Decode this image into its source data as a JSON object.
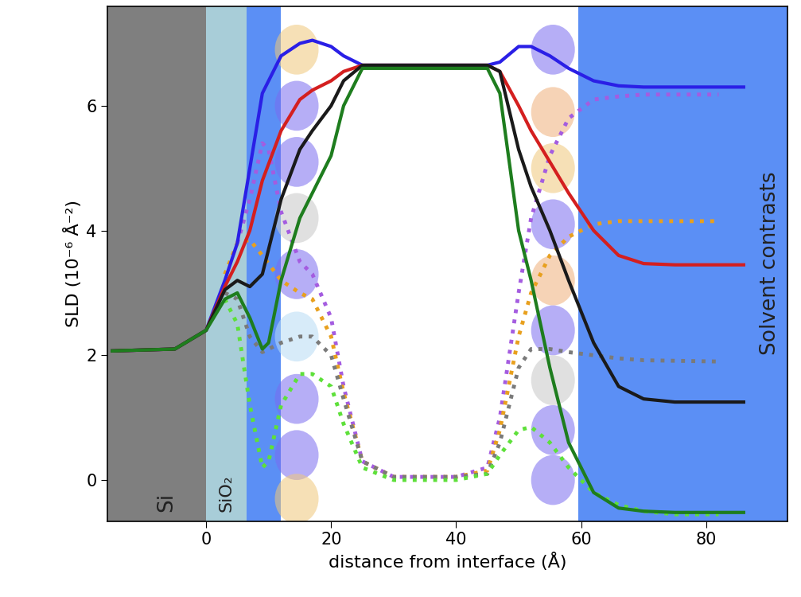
{
  "chart_data": {
    "type": "line",
    "xlabel": "distance from interface (Å)",
    "ylabel": "SLD (10⁻⁶ Å⁻²)",
    "xlim": [
      -15.8,
      93
    ],
    "ylim": [
      -0.66,
      7.6
    ],
    "xticks": [
      0,
      20,
      40,
      60,
      80
    ],
    "yticks": [
      0,
      2,
      4,
      6
    ],
    "grid": false,
    "regions": [
      {
        "label": "Si",
        "start": -15.8,
        "end": 0,
        "color": "#7f7f7f"
      },
      {
        "label": "SiO₂",
        "start": 0,
        "end": 6.5,
        "color": "#a8cdd8"
      },
      {
        "label": null,
        "start": 6.5,
        "end": 12,
        "color": "#5b8ff5"
      },
      {
        "label": "Solvent contrasts",
        "start": 59.5,
        "end": 93,
        "color": "#5b8ff5"
      }
    ],
    "series": [
      {
        "color": "#2a1fe6",
        "line_style": "solid",
        "x": [
          -15,
          -5,
          0,
          3,
          5,
          7,
          9,
          12,
          15,
          17,
          20,
          22,
          25,
          30,
          40,
          45,
          47,
          50,
          52,
          55,
          58,
          62,
          66,
          70,
          75,
          80,
          86
        ],
        "values": [
          2.07,
          2.1,
          2.4,
          3.2,
          3.8,
          5.0,
          6.2,
          6.8,
          7.0,
          7.05,
          6.95,
          6.8,
          6.65,
          6.65,
          6.65,
          6.65,
          6.7,
          6.95,
          6.95,
          6.8,
          6.6,
          6.4,
          6.32,
          6.3,
          6.3,
          6.3,
          6.3
        ]
      },
      {
        "color": "#d41f1f",
        "line_style": "solid",
        "x": [
          -15,
          -5,
          0,
          3,
          5,
          7,
          9,
          12,
          15,
          17,
          20,
          22,
          25,
          30,
          40,
          45,
          47,
          50,
          52,
          55,
          58,
          62,
          66,
          70,
          75,
          80,
          86
        ],
        "values": [
          2.07,
          2.1,
          2.4,
          3.1,
          3.5,
          4.0,
          4.8,
          5.6,
          6.1,
          6.25,
          6.4,
          6.55,
          6.65,
          6.65,
          6.65,
          6.65,
          6.55,
          6.0,
          5.6,
          5.1,
          4.6,
          4.0,
          3.6,
          3.47,
          3.45,
          3.45,
          3.45
        ]
      },
      {
        "color": "#1a1a1a",
        "line_style": "solid",
        "x": [
          -15,
          -5,
          0,
          3,
          5,
          7,
          9,
          12,
          15,
          17,
          20,
          22,
          25,
          30,
          40,
          45,
          47,
          50,
          52,
          55,
          58,
          62,
          66,
          70,
          75,
          80,
          86
        ],
        "values": [
          2.07,
          2.1,
          2.4,
          3.05,
          3.2,
          3.1,
          3.3,
          4.5,
          5.3,
          5.6,
          6.0,
          6.4,
          6.65,
          6.65,
          6.65,
          6.65,
          6.55,
          5.3,
          4.7,
          4.0,
          3.2,
          2.2,
          1.5,
          1.3,
          1.25,
          1.25,
          1.25
        ]
      },
      {
        "color": "#1e7d1e",
        "line_style": "solid",
        "x": [
          -15,
          -5,
          0,
          3,
          5,
          7,
          9,
          10,
          12,
          15,
          17,
          20,
          22,
          25,
          30,
          40,
          45,
          47,
          50,
          52,
          55,
          58,
          62,
          66,
          70,
          75,
          80,
          86
        ],
        "values": [
          2.07,
          2.1,
          2.4,
          2.9,
          3.0,
          2.6,
          2.1,
          2.2,
          3.2,
          4.2,
          4.6,
          5.2,
          6.0,
          6.6,
          6.6,
          6.6,
          6.6,
          6.2,
          4.0,
          3.2,
          1.8,
          0.6,
          -0.2,
          -0.45,
          -0.5,
          -0.52,
          -0.52,
          -0.52
        ]
      },
      {
        "color": "#a45ce0",
        "line_style": "dotted",
        "x": [
          5,
          7,
          9,
          10,
          12,
          15,
          17,
          20,
          22,
          25,
          30,
          40,
          45,
          47,
          50,
          52,
          55,
          58,
          62,
          66,
          70,
          75,
          82
        ],
        "values": [
          3.8,
          4.5,
          5.4,
          5.3,
          4.3,
          3.5,
          3.3,
          2.6,
          1.5,
          0.3,
          0.05,
          0.05,
          0.2,
          1.0,
          3.0,
          4.2,
          5.2,
          5.8,
          6.1,
          6.15,
          6.18,
          6.18,
          6.18
        ]
      },
      {
        "color": "#e8a01e",
        "line_style": "dotted",
        "x": [
          3,
          5,
          7,
          9,
          12,
          15,
          17,
          20,
          22,
          25,
          30,
          40,
          45,
          47,
          50,
          52,
          55,
          58,
          62,
          66,
          70,
          82
        ],
        "values": [
          3.3,
          3.8,
          3.85,
          3.6,
          3.2,
          3.0,
          2.9,
          2.3,
          1.4,
          0.3,
          0.05,
          0.05,
          0.15,
          0.8,
          2.3,
          3.0,
          3.6,
          3.9,
          4.1,
          4.15,
          4.15,
          4.15
        ]
      },
      {
        "color": "#7a7a7a",
        "line_style": "dotted",
        "x": [
          3,
          5,
          7,
          9,
          12,
          15,
          17,
          20,
          22,
          25,
          30,
          40,
          45,
          47,
          50,
          52,
          55,
          58,
          62,
          66,
          70,
          82
        ],
        "values": [
          3.0,
          2.9,
          2.3,
          2.05,
          2.2,
          2.3,
          2.3,
          2.0,
          1.3,
          0.3,
          0.05,
          0.05,
          0.1,
          0.6,
          1.8,
          2.1,
          2.1,
          2.05,
          2.0,
          1.95,
          1.92,
          1.9
        ]
      },
      {
        "color": "#5ee03a",
        "line_style": "dotted",
        "x": [
          3,
          5,
          7,
          9,
          10,
          12,
          15,
          17,
          20,
          22,
          25,
          30,
          40,
          45,
          47,
          50,
          52,
          55,
          58,
          62,
          66,
          70,
          75,
          82
        ],
        "values": [
          2.9,
          2.5,
          1.2,
          0.2,
          0.3,
          1.2,
          1.7,
          1.7,
          1.5,
          0.9,
          0.2,
          0.0,
          0.0,
          0.1,
          0.4,
          0.8,
          0.85,
          0.6,
          0.2,
          -0.2,
          -0.4,
          -0.5,
          -0.55,
          -0.55
        ]
      }
    ]
  }
}
